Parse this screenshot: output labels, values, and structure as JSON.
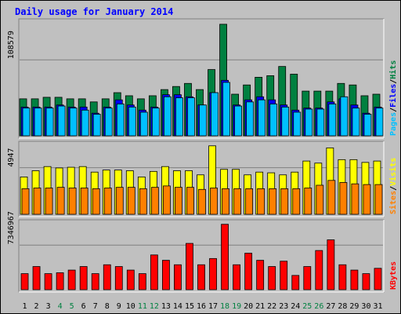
{
  "chart_data": {
    "type": "bar",
    "title": "Daily usage for January 2014",
    "categories": [
      "1",
      "2",
      "3",
      "4",
      "5",
      "6",
      "7",
      "8",
      "9",
      "10",
      "11",
      "12",
      "13",
      "14",
      "15",
      "16",
      "17",
      "18",
      "19",
      "20",
      "21",
      "22",
      "23",
      "24",
      "25",
      "26",
      "27",
      "28",
      "29",
      "30",
      "31"
    ],
    "weekend_days": [
      "4",
      "5",
      "11",
      "12",
      "18",
      "19",
      "25",
      "26"
    ],
    "panels": [
      {
        "id": "hits",
        "max_label": "108579",
        "ylim": [
          0,
          108579
        ],
        "series_labels": [
          "Pages",
          "Files",
          "Hits"
        ],
        "series": [
          {
            "name": "Hits",
            "color": "#008040",
            "values": [
              36000,
              36000,
              37500,
              37500,
              36000,
              36000,
              33000,
              36000,
              42000,
              39000,
              36000,
              39000,
              45000,
              48000,
              51000,
              45000,
              64500,
              108579,
              40500,
              49500,
              57000,
              58500,
              67500,
              60000,
              43500,
              43500,
              43500,
              51000,
              49500,
              39000,
              40500
            ]
          },
          {
            "name": "Files",
            "color": "#0000ff",
            "values": [
              28000,
              28000,
              28000,
              30000,
              28000,
              28000,
              22000,
              28000,
              35000,
              30000,
              25000,
              28000,
              40000,
              40000,
              38000,
              30000,
              42000,
              54000,
              30000,
              35000,
              38000,
              35000,
              30000,
              25000,
              27000,
              27000,
              33000,
              36000,
              30000,
              22000,
              28000
            ]
          },
          {
            "name": "Pages",
            "color": "#00c0ff",
            "values": [
              27000,
              27000,
              27000,
              29000,
              27000,
              25000,
              21000,
              27000,
              31000,
              28000,
              23000,
              27000,
              38000,
              37000,
              37000,
              30000,
              42000,
              52000,
              29000,
              33000,
              35000,
              31000,
              28000,
              23000,
              26000,
              26000,
              31000,
              38000,
              27000,
              21000,
              27000
            ]
          }
        ]
      },
      {
        "id": "visits",
        "max_label": "4947",
        "ylim": [
          0,
          4947
        ],
        "series_labels": [
          "Sites",
          "Visits"
        ],
        "series": [
          {
            "name": "Visits",
            "color": "#ffff00",
            "values": [
              2700,
              3150,
              3450,
              3350,
              3400,
              3450,
              3050,
              3200,
              3200,
              3150,
              2700,
              3100,
              3450,
              3150,
              3150,
              2850,
              5100,
              3250,
              3250,
              2850,
              3050,
              3000,
              2850,
              3050,
              3850,
              3700,
              4800,
              3950,
              3950,
              3750,
              3850
            ]
          },
          {
            "name": "Sites",
            "color": "#ff8000",
            "values": [
              1850,
              1900,
              1900,
              1950,
              1900,
              1900,
              1850,
              1900,
              1950,
              1950,
              1850,
              1950,
              2050,
              1950,
              1950,
              1800,
              1900,
              1850,
              1850,
              1850,
              1850,
              1850,
              1850,
              1850,
              1900,
              2100,
              2450,
              2300,
              2200,
              2150,
              2150
            ]
          }
        ]
      },
      {
        "id": "kbytes",
        "max_label": "7346967",
        "ylim": [
          0,
          7346967
        ],
        "series_labels": [
          "KBytes"
        ],
        "series": [
          {
            "name": "KBytes",
            "color": "#ff0000",
            "values": [
              1800000,
              2600000,
              1800000,
              1900000,
              2200000,
              2600000,
              1800000,
              2800000,
              2600000,
              2200000,
              1800000,
              3900000,
              3300000,
              2800000,
              5200000,
              2800000,
              3500000,
              7346967,
              2800000,
              4100000,
              3300000,
              2600000,
              3200000,
              1600000,
              2600000,
              4400000,
              5600000,
              2800000,
              2200000,
              1800000,
              2400000
            ]
          }
        ]
      }
    ],
    "colors": {
      "background": "#c0c0c0",
      "plot": "#c0c0c0",
      "title": "#0000ff",
      "weekday_label": "#000000",
      "weekend_label": "#008040",
      "separator": "#000000"
    }
  }
}
